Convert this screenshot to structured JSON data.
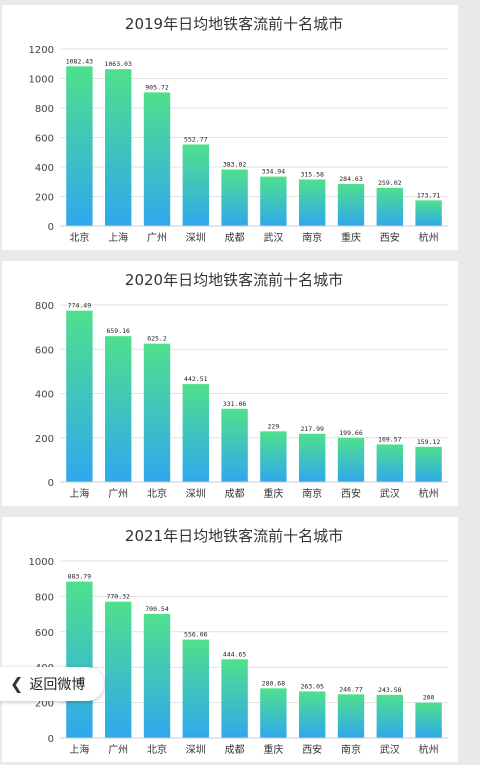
{
  "chart_data": [
    {
      "type": "bar",
      "title": "2019年日均地铁客流前十名城市",
      "categories": [
        "北京",
        "上海",
        "广州",
        "深圳",
        "成都",
        "武汉",
        "南京",
        "重庆",
        "西安",
        "杭州"
      ],
      "values": [
        1082.43,
        1063.03,
        905.72,
        552.77,
        383.02,
        334.94,
        315.58,
        284.63,
        259.02,
        173.71
      ],
      "value_labels": [
        "1082.43",
        "1063.03",
        "905.72",
        "552.77",
        "383.02",
        "334.94",
        "315.58",
        "284.63",
        "259.02",
        "173.71"
      ],
      "ylim": [
        0,
        1200
      ],
      "yticks": [
        0,
        200,
        400,
        600,
        800,
        1000,
        1200
      ],
      "grid": true
    },
    {
      "type": "bar",
      "title": "2020年日均地铁客流前十名城市",
      "categories": [
        "上海",
        "广州",
        "北京",
        "深圳",
        "成都",
        "重庆",
        "南京",
        "西安",
        "武汉",
        "杭州"
      ],
      "values": [
        774.49,
        659.16,
        625.2,
        442.51,
        331.06,
        229,
        217.99,
        199.66,
        169.57,
        159.12
      ],
      "value_labels": [
        "774.49",
        "659.16",
        "625.2",
        "442.51",
        "331.06",
        "229",
        "217.99",
        "199.66",
        "169.57",
        "159.12"
      ],
      "ylim": [
        0,
        800
      ],
      "yticks": [
        0,
        200,
        400,
        600,
        800
      ],
      "grid": true
    },
    {
      "type": "bar",
      "title": "2021年日均地铁客流前十名城市",
      "categories": [
        "上海",
        "广州",
        "北京",
        "深圳",
        "成都",
        "重庆",
        "西安",
        "南京",
        "武汉",
        "杭州"
      ],
      "values": [
        883.79,
        770.32,
        700.54,
        556.06,
        444.65,
        280.68,
        263.05,
        246.77,
        243.58,
        200
      ],
      "value_labels": [
        "883.79",
        "770.32",
        "700.54",
        "556.06",
        "444.65",
        "280.68",
        "263.05",
        "246.77",
        "243.58",
        "200"
      ],
      "ylim": [
        0,
        1000
      ],
      "yticks": [
        0,
        200,
        400,
        600,
        800,
        1000
      ],
      "grid": true
    }
  ],
  "colors": {
    "bar_top": "#4fe08c",
    "bar_bottom": "#2fa8ee"
  },
  "back_button": {
    "label": "返回微博",
    "icon": "chevron-left-icon"
  }
}
